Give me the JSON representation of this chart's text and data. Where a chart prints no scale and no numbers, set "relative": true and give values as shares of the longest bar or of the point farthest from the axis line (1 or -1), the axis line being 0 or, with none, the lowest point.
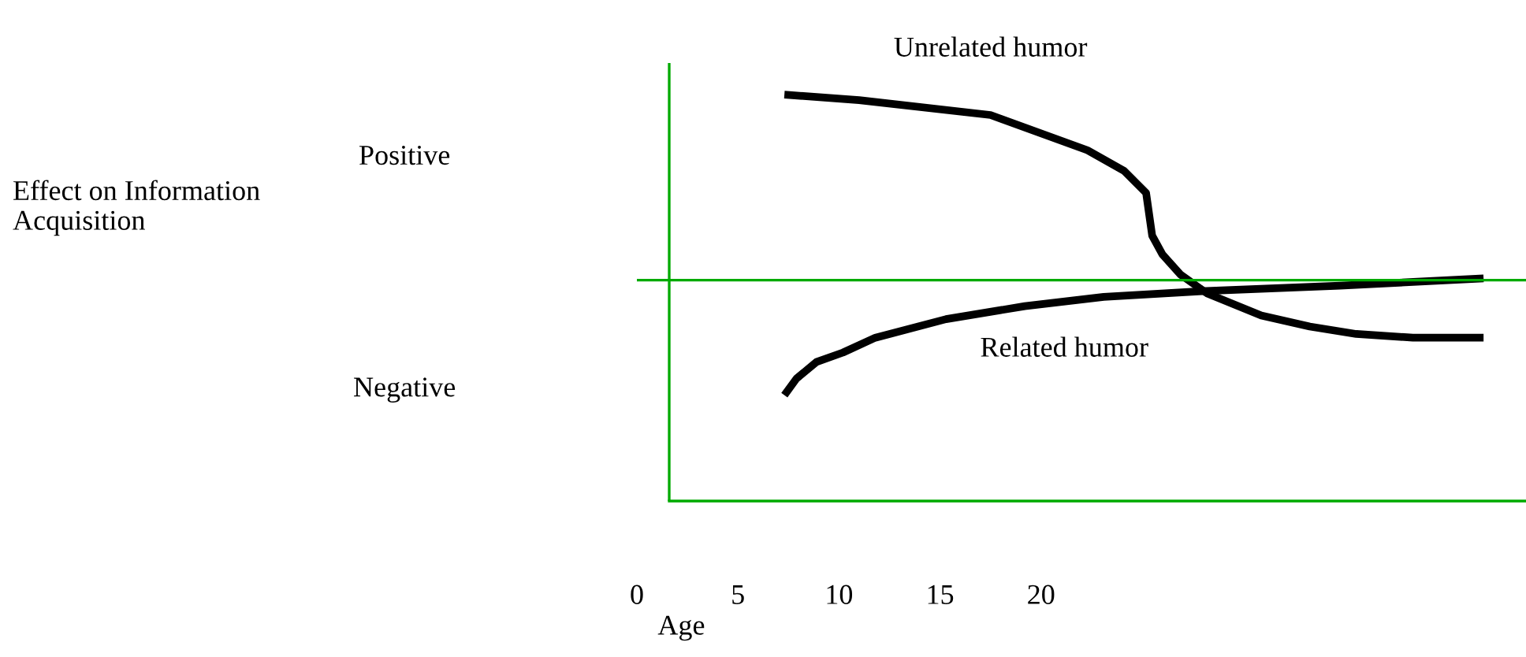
{
  "chart_data": {
    "type": "line",
    "relative": true,
    "xlabel": "Age",
    "annotations": [
      "Positive",
      "Negative",
      "Effect on Information Acquisition"
    ],
    "xlim": [
      0,
      44
    ],
    "xticks": [
      0,
      5,
      10,
      15,
      20
    ],
    "ref_lines": [
      {
        "axis": "y",
        "value": 0,
        "color": "#00aa00"
      },
      {
        "axis": "x",
        "value": 1.6,
        "color": "#00aa00"
      }
    ],
    "grid": false,
    "legend": false,
    "marker": "none",
    "line_style": "solid",
    "series": [
      {
        "name": "Unrelated humor",
        "color": "#000000",
        "x": [
          7.3,
          11.0,
          17.5,
          22.3,
          24.1,
          25.2,
          25.5,
          26.0,
          26.9,
          28.2,
          30.9,
          33.3,
          35.6,
          38.4,
          41.9
        ],
        "values": [
          1.0,
          0.97,
          0.89,
          0.7,
          0.59,
          0.47,
          0.24,
          0.14,
          0.03,
          -0.07,
          -0.19,
          -0.25,
          -0.29,
          -0.31,
          -0.31
        ]
      },
      {
        "name": "Related humor",
        "color": "#000000",
        "x": [
          7.3,
          7.9,
          8.9,
          10.2,
          11.8,
          15.3,
          19.2,
          23.1,
          27.8,
          34.8,
          41.9
        ],
        "values": [
          -0.62,
          -0.53,
          -0.44,
          -0.39,
          -0.31,
          -0.21,
          -0.14,
          -0.09,
          -0.06,
          -0.03,
          0.01
        ]
      }
    ]
  }
}
